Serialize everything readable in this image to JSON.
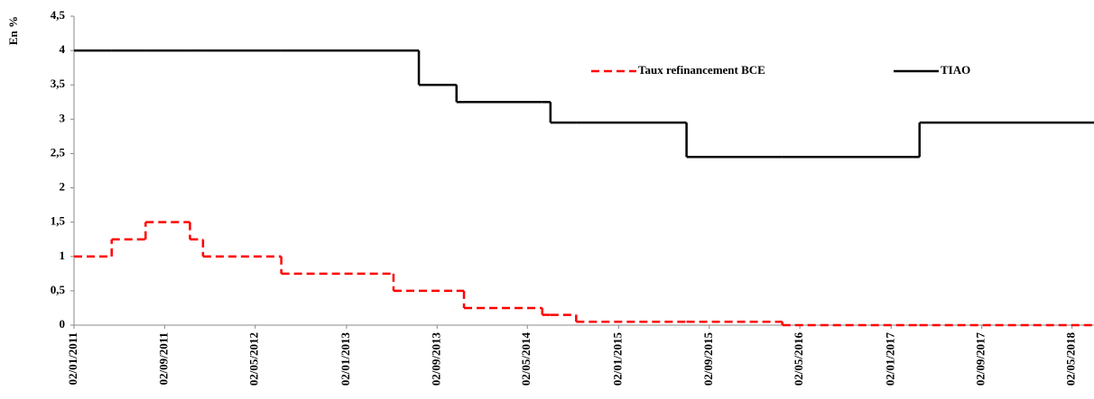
{
  "chart_data": {
    "type": "step",
    "y_label": "En %",
    "x": [
      "02/01/2011",
      "13/04/2011",
      "13/07/2011",
      "09/11/2011",
      "14/12/2011",
      "11/07/2012",
      "08/05/2013",
      "15/07/2013",
      "24/10/2013",
      "13/11/2013",
      "11/06/2014",
      "03/07/2014",
      "10/09/2014",
      "03/07/2015",
      "16/03/2016",
      "19/03/2017",
      "30/06/2018"
    ],
    "series": [
      {
        "name": "Taux refinancement BCE",
        "color": "#ff0000",
        "dashed": true,
        "values": [
          1,
          1.25,
          1.5,
          1.25,
          1,
          0.75,
          0.5,
          0.5,
          0.5,
          0.25,
          0.15,
          0.15,
          0.05,
          0.05,
          0,
          0,
          0
        ]
      },
      {
        "name": "TIAO",
        "color": "#000000",
        "dashed": false,
        "values": [
          4,
          4,
          4,
          4,
          4,
          4,
          4,
          3.5,
          3.25,
          3.25,
          3.25,
          2.95,
          2.95,
          2.45,
          2.45,
          2.95,
          2.95
        ]
      }
    ],
    "xlim": [
      "02/01/2011",
      "30/06/2018"
    ],
    "xticks": [
      "02/01/2011",
      "02/09/2011",
      "02/05/2012",
      "02/01/2013",
      "02/09/2013",
      "02/05/2014",
      "02/01/2015",
      "02/09/2015",
      "02/05/2016",
      "02/01/2017",
      "02/09/2017",
      "02/05/2018"
    ],
    "ylim": [
      0,
      4.5
    ],
    "yticks": [
      0,
      {
        "value": 0.5,
        "label": "0,5"
      },
      1,
      {
        "value": 1.5,
        "label": "1,5"
      },
      2,
      {
        "value": 2.5,
        "label": "2,5"
      },
      3,
      {
        "value": 3.5,
        "label": "3,5"
      },
      4,
      {
        "value": 4.5,
        "label": "4,5"
      }
    ],
    "grid": false
  }
}
